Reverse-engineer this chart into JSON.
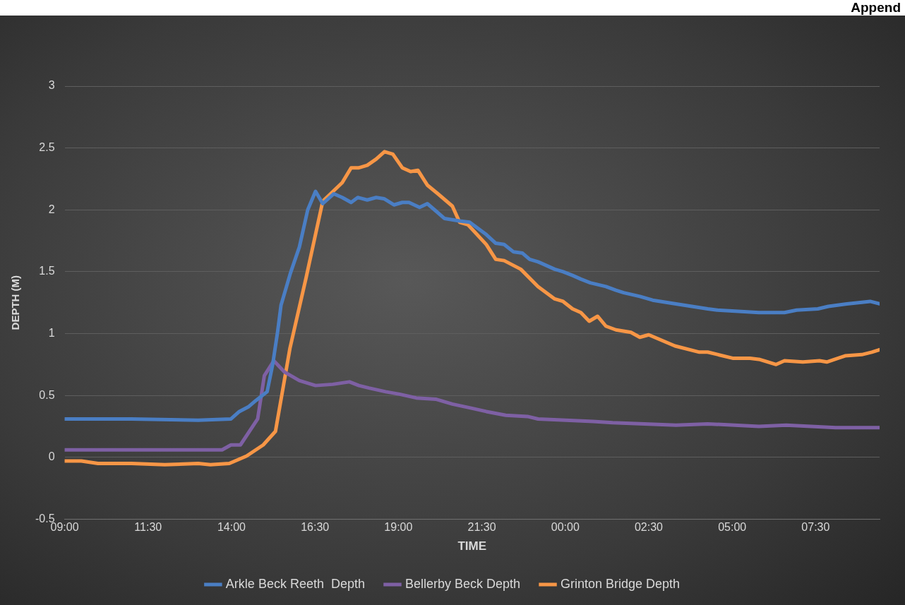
{
  "chart_data": {
    "type": "line",
    "xlabel": "TIME",
    "ylabel": "DEPTH (M)",
    "annotations": [
      "Append"
    ],
    "xlim": [
      "--01-01T09:00",
      "--01-02T09:25"
    ],
    "xticks": [
      {
        "value": "--01-01T09:00",
        "label": "09:00"
      },
      {
        "value": "--01-01T11:30",
        "label": "11:30"
      },
      {
        "value": "--01-01T14:00",
        "label": "14:00"
      },
      {
        "value": "--01-01T16:30",
        "label": "16:30"
      },
      {
        "value": "--01-01T19:00",
        "label": "19:00"
      },
      {
        "value": "--01-01T21:30",
        "label": "21:30"
      },
      {
        "value": "--01-02T00:00",
        "label": "00:00"
      },
      {
        "value": "--01-02T02:30",
        "label": "02:30"
      },
      {
        "value": "--01-02T05:00",
        "label": "05:00"
      },
      {
        "value": "--01-02T07:30",
        "label": "07:30"
      }
    ],
    "ylim": [
      -0.5,
      3
    ],
    "yticks": [
      -0.5,
      0,
      0.5,
      1,
      1.5,
      2,
      2.5,
      3
    ],
    "grid": "y",
    "legend": "bottom",
    "marker": "none",
    "line_style": "solid",
    "series": [
      {
        "name": "Arkle Beck Reeth  Depth",
        "color": "#4a7ec4",
        "x": [
          "--01-01T09:00",
          "--01-01T11:00",
          "--01-01T13:00",
          "--01-01T13:59",
          "--01-01T14:14",
          "--01-01T14:31",
          "--01-01T14:44",
          "--01-01T15:04",
          "--01-01T15:14",
          "--01-01T15:23",
          "--01-01T15:29",
          "--01-01T15:46",
          "--01-01T16:02",
          "--01-01T16:17",
          "--01-01T16:31",
          "--01-01T16:44",
          "--01-01T17:04",
          "--01-01T17:19",
          "--01-01T17:35",
          "--01-01T17:47",
          "--01-01T18:04",
          "--01-01T18:20",
          "--01-01T18:34",
          "--01-01T18:52",
          "--01-01T19:07",
          "--01-01T19:19",
          "--01-01T19:38",
          "--01-01T19:52",
          "--01-01T20:05",
          "--01-01T20:23",
          "--01-01T20:50",
          "--01-01T21:08",
          "--01-01T21:38",
          "--01-01T21:55",
          "--01-01T22:10",
          "--01-01T22:27",
          "--01-01T22:43",
          "--01-01T22:56",
          "--01-01T23:11",
          "--01-01T23:41",
          "--01-01T23:56",
          "--01-02T00:13",
          "--01-02T00:28",
          "--01-02T00:45",
          "--01-02T01:13",
          "--01-02T01:31",
          "--01-02T01:45",
          "--01-02T02:14",
          "--01-02T02:37",
          "--01-02T03:19",
          "--01-02T04:16",
          "--01-02T04:33",
          "--01-02T05:48",
          "--01-02T06:34",
          "--01-02T06:56",
          "--01-02T07:34",
          "--01-02T07:53",
          "--01-02T08:26",
          "--01-02T09:08",
          "--01-02T09:25"
        ],
        "values": [
          0.31,
          0.31,
          0.3,
          0.31,
          0.37,
          0.41,
          0.46,
          0.53,
          0.75,
          1.02,
          1.23,
          1.49,
          1.7,
          2.0,
          2.15,
          2.05,
          2.13,
          2.1,
          2.06,
          2.1,
          2.08,
          2.1,
          2.09,
          2.04,
          2.06,
          2.06,
          2.02,
          2.05,
          2.0,
          1.93,
          1.91,
          1.9,
          1.8,
          1.73,
          1.72,
          1.66,
          1.65,
          1.6,
          1.58,
          1.52,
          1.5,
          1.47,
          1.44,
          1.41,
          1.38,
          1.35,
          1.33,
          1.3,
          1.27,
          1.24,
          1.2,
          1.19,
          1.17,
          1.17,
          1.19,
          1.2,
          1.22,
          1.24,
          1.26,
          1.24
        ]
      },
      {
        "name": "Bellerby Beck Depth",
        "color": "#7e60a4",
        "x": [
          "--01-01T09:00",
          "--01-01T13:43",
          "--01-01T13:59",
          "--01-01T14:16",
          "--01-01T14:47",
          "--01-01T14:59",
          "--01-01T15:16",
          "--01-01T15:35",
          "--01-01T16:02",
          "--01-01T16:31",
          "--01-01T17:02",
          "--01-01T17:32",
          "--01-01T17:49",
          "--01-01T18:07",
          "--01-01T18:37",
          "--01-01T19:02",
          "--01-01T19:32",
          "--01-01T20:07",
          "--01-01T20:37",
          "--01-01T21:08",
          "--01-01T21:38",
          "--01-01T22:13",
          "--01-01T22:52",
          "--01-01T23:11",
          "--01-02T00:01",
          "--01-02T00:50",
          "--01-02T01:25",
          "--01-02T03:19",
          "--01-02T04:16",
          "--01-02T05:48",
          "--01-02T06:37",
          "--01-02T08:06",
          "--01-02T09:25"
        ],
        "values": [
          0.06,
          0.06,
          0.1,
          0.1,
          0.31,
          0.66,
          0.78,
          0.69,
          0.62,
          0.58,
          0.59,
          0.61,
          0.58,
          0.56,
          0.53,
          0.51,
          0.48,
          0.47,
          0.43,
          0.4,
          0.37,
          0.34,
          0.33,
          0.31,
          0.3,
          0.29,
          0.28,
          0.26,
          0.27,
          0.25,
          0.26,
          0.24,
          0.24
        ]
      },
      {
        "name": "Grinton Bridge Depth",
        "color": "#f79646",
        "x": [
          "--01-01T09:00",
          "--01-01T09:30",
          "--01-01T10:00",
          "--01-01T11:00",
          "--01-01T12:00",
          "--01-01T13:00",
          "--01-01T13:22",
          "--01-01T13:56",
          "--01-01T14:27",
          "--01-01T14:57",
          "--01-01T15:19",
          "--01-01T15:45",
          "--01-01T16:14",
          "--01-01T16:44",
          "--01-01T17:19",
          "--01-01T17:35",
          "--01-01T17:49",
          "--01-01T18:04",
          "--01-01T18:20",
          "--01-01T18:35",
          "--01-01T18:50",
          "--01-01T19:07",
          "--01-01T19:22",
          "--01-01T19:35",
          "--01-01T19:52",
          "--01-01T20:11",
          "--01-01T20:37",
          "--01-01T20:50",
          "--01-01T21:05",
          "--01-01T21:38",
          "--01-01T21:55",
          "--01-01T22:10",
          "--01-01T22:40",
          "--01-01T23:11",
          "--01-01T23:41",
          "--01-01T23:56",
          "--01-02T00:13",
          "--01-02T00:28",
          "--01-02T00:43",
          "--01-02T00:58",
          "--01-02T01:13",
          "--01-02T01:31",
          "--01-02T01:58",
          "--01-02T02:14",
          "--01-02T02:30",
          "--01-02T03:17",
          "--01-02T04:01",
          "--01-02T04:16",
          "--01-02T05:02",
          "--01-02T05:32",
          "--01-02T05:50",
          "--01-02T06:19",
          "--01-02T06:34",
          "--01-02T07:07",
          "--01-02T07:37",
          "--01-02T07:50",
          "--01-02T08:23",
          "--01-02T08:53",
          "--01-02T09:11",
          "--01-02T09:25"
        ],
        "values": [
          -0.03,
          -0.03,
          -0.05,
          -0.05,
          -0.06,
          -0.05,
          -0.06,
          -0.05,
          0.01,
          0.1,
          0.21,
          0.88,
          1.45,
          2.07,
          2.22,
          2.34,
          2.34,
          2.36,
          2.41,
          2.47,
          2.45,
          2.34,
          2.31,
          2.32,
          2.2,
          2.13,
          2.03,
          1.9,
          1.88,
          1.72,
          1.6,
          1.59,
          1.52,
          1.38,
          1.28,
          1.26,
          1.2,
          1.17,
          1.1,
          1.14,
          1.06,
          1.03,
          1.01,
          0.97,
          0.99,
          0.9,
          0.85,
          0.85,
          0.8,
          0.8,
          0.79,
          0.75,
          0.78,
          0.77,
          0.78,
          0.77,
          0.82,
          0.83,
          0.85,
          0.87
        ]
      }
    ]
  }
}
